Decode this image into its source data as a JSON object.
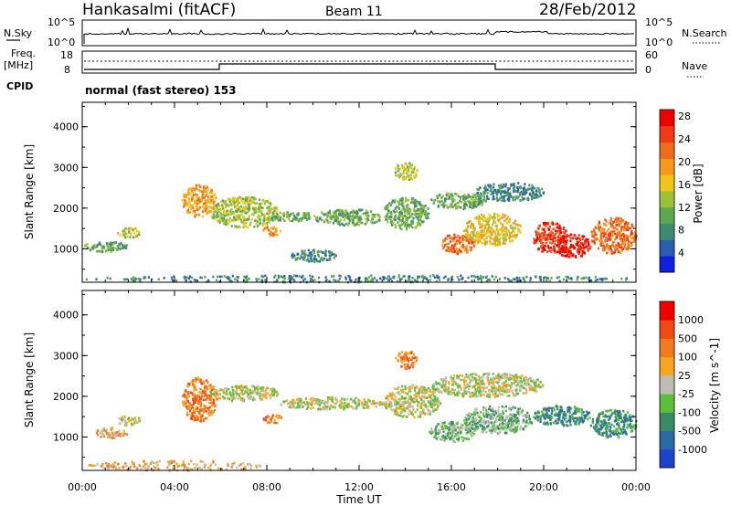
{
  "header": {
    "title": "Hankasalmi (fitACF)",
    "beam": "Beam 11",
    "date": "28/Feb/2012"
  },
  "nsky_panel": {
    "left_label": "N.Sky",
    "left_ticks": [
      "10^5",
      "10^0"
    ],
    "right_label": "N.Search",
    "right_ticks": [
      "10^5",
      "10^0"
    ]
  },
  "freq_panel": {
    "left_label_1": "Freq.",
    "left_label_2": "[MHz]",
    "left_ticks": [
      "18",
      "8"
    ],
    "right_label": "Nave",
    "right_ticks": [
      "60",
      "0"
    ]
  },
  "cpid": {
    "label": "CPID",
    "value": "normal (fast stereo) 153"
  },
  "chart_data": [
    {
      "type": "heatmap",
      "name": "power",
      "ylabel": "Slant Range [km]",
      "xlabel": "",
      "xlim": [
        0,
        24
      ],
      "ylim": [
        180,
        4600
      ],
      "yticks": [
        1000,
        2000,
        3000,
        4000
      ],
      "colorbar": {
        "label": "Power [dB]",
        "ticks": [
          "4",
          "8",
          "12",
          "16",
          "20",
          "24",
          "28"
        ],
        "colors": [
          "#1020e0",
          "#2a5cb0",
          "#3f8a70",
          "#5aa84f",
          "#9fc13a",
          "#f0c418",
          "#f59a1e",
          "#f06a1e",
          "#f03a14",
          "#ee0000"
        ]
      },
      "regions": [
        {
          "x": [
            0.0,
            24.0
          ],
          "y": [
            200,
            380
          ],
          "level": 2,
          "kind": "speckle"
        },
        {
          "x": [
            0.0,
            2.0
          ],
          "y": [
            950,
            1200
          ],
          "level": 3
        },
        {
          "x": [
            1.5,
            2.5
          ],
          "y": [
            1300,
            1550
          ],
          "level": 4
        },
        {
          "x": [
            4.3,
            5.8
          ],
          "y": [
            1800,
            2600
          ],
          "level": 6
        },
        {
          "x": [
            5.5,
            8.5
          ],
          "y": [
            1550,
            2300
          ],
          "level": 4
        },
        {
          "x": [
            7.8,
            8.6
          ],
          "y": [
            1350,
            1600
          ],
          "level": 6
        },
        {
          "x": [
            8.0,
            10.0
          ],
          "y": [
            1700,
            1950
          ],
          "level": 3
        },
        {
          "x": [
            10.0,
            13.0
          ],
          "y": [
            1600,
            2000
          ],
          "level": 3
        },
        {
          "x": [
            13.0,
            15.0
          ],
          "y": [
            1500,
            2300
          ],
          "level": 3
        },
        {
          "x": [
            13.5,
            14.5
          ],
          "y": [
            2700,
            3150
          ],
          "level": 4
        },
        {
          "x": [
            15.0,
            17.5
          ],
          "y": [
            2000,
            2400
          ],
          "level": 3
        },
        {
          "x": [
            17.0,
            20.0
          ],
          "y": [
            2200,
            2650
          ],
          "level": 2
        },
        {
          "x": [
            15.5,
            17.0
          ],
          "y": [
            900,
            1400
          ],
          "level": 7
        },
        {
          "x": [
            16.5,
            19.0
          ],
          "y": [
            1100,
            1900
          ],
          "level": 5
        },
        {
          "x": [
            9.0,
            11.0
          ],
          "y": [
            700,
            1000
          ],
          "level": 2
        },
        {
          "x": [
            19.5,
            21.0
          ],
          "y": [
            900,
            1700
          ],
          "level": 8
        },
        {
          "x": [
            20.5,
            22.0
          ],
          "y": [
            800,
            1400
          ],
          "level": 9
        },
        {
          "x": [
            22.0,
            24.0
          ],
          "y": [
            900,
            1800
          ],
          "level": 7
        }
      ]
    },
    {
      "type": "heatmap",
      "name": "velocity",
      "ylabel": "Slant Range [km]",
      "xlabel": "Time UT",
      "xlim": [
        0,
        24
      ],
      "ylim": [
        180,
        4600
      ],
      "yticks": [
        1000,
        2000,
        3000,
        4000
      ],
      "xticks": [
        "00:00",
        "04:00",
        "08:00",
        "12:00",
        "16:00",
        "20:00",
        "00:00"
      ],
      "colorbar": {
        "label": "Velocity [m s^-1]",
        "ticks": [
          "1000",
          "500",
          "100",
          "25",
          "-25",
          "-100",
          "-500",
          "-1000"
        ],
        "colors": [
          "#1c44c8",
          "#2a6aa4",
          "#3a8a6a",
          "#5bbf3a",
          "#bebdb4",
          "#f5a623",
          "#f07a1e",
          "#f04a14",
          "#ee0000"
        ]
      },
      "regions": [
        {
          "x": [
            0.0,
            8.0
          ],
          "y": [
            200,
            450
          ],
          "level": 5,
          "kind": "speckle"
        },
        {
          "x": [
            0.5,
            2.0
          ],
          "y": [
            1000,
            1250
          ],
          "level": 5
        },
        {
          "x": [
            1.5,
            2.5
          ],
          "y": [
            1300,
            1550
          ],
          "level": 4
        },
        {
          "x": [
            4.3,
            5.8
          ],
          "y": [
            1400,
            2500
          ],
          "level": 6
        },
        {
          "x": [
            5.5,
            8.5
          ],
          "y": [
            1900,
            2300
          ],
          "level": 4
        },
        {
          "x": [
            7.8,
            8.6
          ],
          "y": [
            1350,
            1600
          ],
          "level": 6
        },
        {
          "x": [
            8.5,
            13.0
          ],
          "y": [
            1700,
            2000
          ],
          "level": 4
        },
        {
          "x": [
            13.0,
            15.5
          ],
          "y": [
            1500,
            2300
          ],
          "level": 4
        },
        {
          "x": [
            13.5,
            14.5
          ],
          "y": [
            2700,
            3150
          ],
          "level": 6
        },
        {
          "x": [
            15.0,
            20.0
          ],
          "y": [
            2000,
            2600
          ],
          "level": 4
        },
        {
          "x": [
            15.0,
            17.0
          ],
          "y": [
            900,
            1400
          ],
          "level": 3
        },
        {
          "x": [
            16.5,
            19.5
          ],
          "y": [
            1100,
            1800
          ],
          "level": 3
        },
        {
          "x": [
            19.5,
            22.0
          ],
          "y": [
            1300,
            1800
          ],
          "level": 2
        },
        {
          "x": [
            22.0,
            24.0
          ],
          "y": [
            1000,
            1700
          ],
          "level": 2
        }
      ]
    }
  ]
}
